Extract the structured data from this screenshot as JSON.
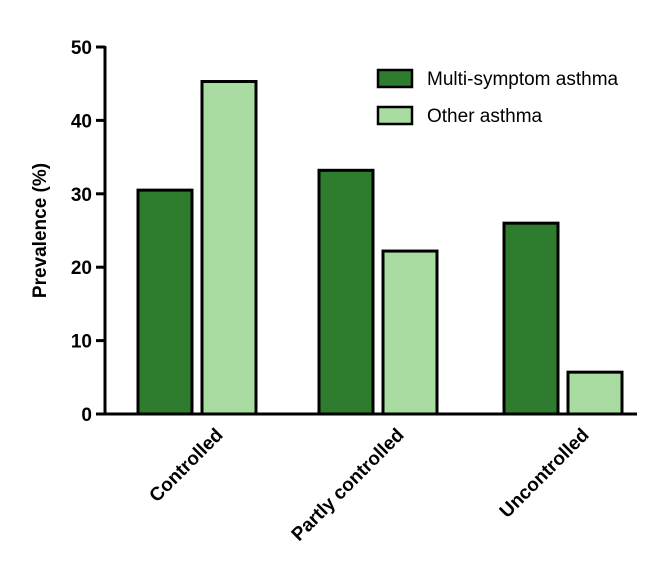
{
  "chart_data": {
    "type": "bar",
    "title": "",
    "xlabel": "",
    "ylabel": "Prevalence (%)",
    "ylim": [
      0,
      50
    ],
    "yticks": [
      0,
      10,
      20,
      30,
      40,
      50
    ],
    "grid": false,
    "legend_position": "top-right",
    "categories": [
      "Controlled",
      "Partly controlled",
      "Uncontrolled"
    ],
    "series": [
      {
        "name": "Multi-symptom asthma",
        "color": "#2e7d2e",
        "values": [
          30.5,
          33.2,
          26.0
        ]
      },
      {
        "name": "Other asthma",
        "color": "#a8dca0",
        "values": [
          45.3,
          22.2,
          5.7
        ]
      }
    ]
  }
}
